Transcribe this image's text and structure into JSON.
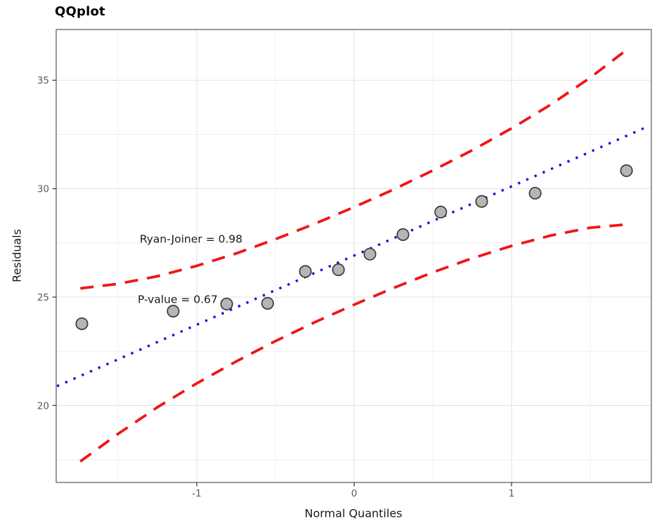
{
  "chart_data": {
    "type": "scatter",
    "title": "QQplot",
    "xlabel": "Normal Quantiles",
    "ylabel": "Residuals",
    "xlim": [
      -1.893,
      1.888
    ],
    "ylim": [
      16.45,
      37.34
    ],
    "x_ticks": [
      -1,
      0,
      1
    ],
    "y_ticks": [
      20,
      25,
      30,
      35
    ],
    "x_minor": [
      -1.5,
      -0.5,
      0.5,
      1.5
    ],
    "y_minor": [
      17.5,
      22.5,
      27.5,
      32.5
    ],
    "grid": "on",
    "legend": "none",
    "points": {
      "x": [
        -1.73,
        -1.15,
        -0.81,
        -0.55,
        -0.31,
        -0.1,
        0.1,
        0.31,
        0.55,
        0.81,
        1.15,
        1.73
      ],
      "y": [
        23.77,
        24.35,
        24.68,
        24.71,
        26.18,
        26.26,
        26.98,
        27.88,
        28.92,
        29.41,
        29.79,
        30.83
      ]
    },
    "fit_line": {
      "style": "dotted",
      "x1": -1.888,
      "y1": 20.89,
      "x2": 1.848,
      "y2": 32.81
    },
    "bands": {
      "style": "dashed",
      "upper": [
        [
          -1.74,
          25.4
        ],
        [
          -1.5,
          25.61
        ],
        [
          -1.25,
          25.96
        ],
        [
          -1.0,
          26.44
        ],
        [
          -0.75,
          27.01
        ],
        [
          -0.5,
          27.67
        ],
        [
          -0.25,
          28.38
        ],
        [
          0,
          29.15
        ],
        [
          0.25,
          29.96
        ],
        [
          0.5,
          30.84
        ],
        [
          0.75,
          31.77
        ],
        [
          1.0,
          32.78
        ],
        [
          1.25,
          33.88
        ],
        [
          1.5,
          35.12
        ],
        [
          1.72,
          36.34
        ]
      ],
      "lower": [
        [
          -1.74,
          17.42
        ],
        [
          -1.5,
          18.69
        ],
        [
          -1.25,
          19.92
        ],
        [
          -1.0,
          21.02
        ],
        [
          -0.75,
          22.03
        ],
        [
          -0.5,
          22.97
        ],
        [
          -0.25,
          23.84
        ],
        [
          0,
          24.65
        ],
        [
          0.25,
          25.42
        ],
        [
          0.5,
          26.14
        ],
        [
          0.75,
          26.79
        ],
        [
          1.0,
          27.36
        ],
        [
          1.25,
          27.84
        ],
        [
          1.5,
          28.2
        ],
        [
          1.72,
          28.34
        ]
      ]
    },
    "annotations": [
      {
        "text": "Ryan-Joiner = 0.98",
        "x": -1.036,
        "y": 27.69
      },
      {
        "text": "P-value = 0.67",
        "x": -1.121,
        "y": 24.9
      }
    ],
    "colors": {
      "point_fill": "#b5b5b5",
      "point_stroke": "#3a3a3a",
      "fit_line": "#1414dd",
      "band": "#f01616",
      "grid_major": "#e2e2e2",
      "grid_minor": "#f0f0f0",
      "panel_border": "#808080",
      "tick_mark": "#404040",
      "tick_label": "#595959",
      "annotation_text": "#1a1a1a",
      "panel_bg": "#ffffff"
    }
  }
}
